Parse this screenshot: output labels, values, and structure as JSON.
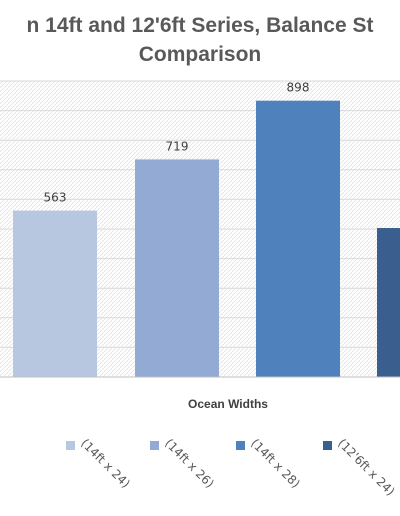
{
  "chart_data": {
    "type": "bar",
    "title_line1": "n 14ft and 12'6ft Series,  Balance St",
    "title_line2": "Comparison",
    "xlabel": "Ocean Widths",
    "ylabel": "",
    "categories": [
      "(14ft x 24)",
      "(14ft x 26)",
      "(14ft x 28)",
      "(12'6ft x 24)"
    ],
    "values": [
      563,
      719,
      898,
      510
    ],
    "data_labels": [
      "563",
      "719",
      "898",
      ""
    ],
    "colors": [
      "#b8c7e0",
      "#93aad4",
      "#4f81bd",
      "#3a5f8f"
    ],
    "ylim": [
      0,
      1000
    ],
    "grid": true,
    "legend_position": "bottom"
  }
}
